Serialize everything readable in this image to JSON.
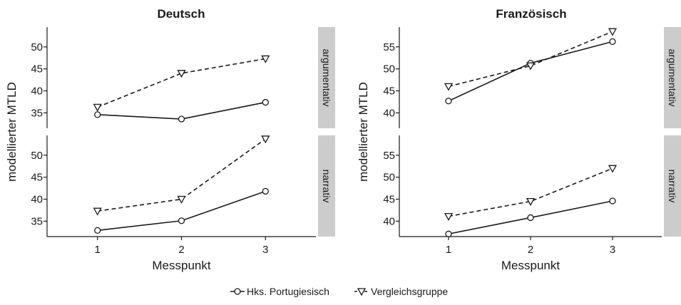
{
  "chart_data": {
    "type": "line",
    "x": [
      1,
      2,
      3
    ],
    "xlabel": "Messpunkt",
    "ylabel": "modellierter MTLD",
    "x_ticks": [
      "1",
      "2",
      "3"
    ],
    "column_titles": [
      "Deutsch",
      "Französisch"
    ],
    "row_labels": [
      "argumentativ",
      "narrativ"
    ],
    "legend": {
      "position": "bottom",
      "entries": [
        {
          "name": "Hks. Portugiesisch",
          "marker": "circle",
          "linestyle": "solid"
        },
        {
          "name": "Vergleichsgruppe",
          "marker": "triangle-down",
          "linestyle": "dashed"
        }
      ]
    },
    "panels": [
      {
        "language": "Deutsch",
        "genre": "argumentativ",
        "ylim": [
          31.5,
          54.5
        ],
        "yticks": [
          35,
          40,
          45,
          50
        ],
        "series": [
          {
            "name": "Hks. Portugiesisch",
            "values": [
              34.6,
              33.6,
              37.4
            ]
          },
          {
            "name": "Vergleichsgruppe",
            "values": [
              36.3,
              44.0,
              47.3
            ]
          }
        ]
      },
      {
        "language": "Deutsch",
        "genre": "narrativ",
        "ylim": [
          31.5,
          54.5
        ],
        "yticks": [
          35,
          40,
          45,
          50
        ],
        "series": [
          {
            "name": "Hks. Portugiesisch",
            "values": [
              32.9,
              35.1,
              41.8
            ]
          },
          {
            "name": "Vergleichsgruppe",
            "values": [
              37.3,
              40.0,
              53.7
            ]
          }
        ]
      },
      {
        "language": "Französisch",
        "genre": "argumentativ",
        "ylim": [
          36.5,
          59.5
        ],
        "yticks": [
          40,
          45,
          50,
          55
        ],
        "series": [
          {
            "name": "Hks. Portugiesisch",
            "values": [
              42.7,
              51.3,
              56.2
            ]
          },
          {
            "name": "Vergleichsgruppe",
            "values": [
              46.0,
              50.7,
              58.5
            ]
          }
        ]
      },
      {
        "language": "Französisch",
        "genre": "narrativ",
        "ylim": [
          36.5,
          59.5
        ],
        "yticks": [
          40,
          45,
          50,
          55
        ],
        "series": [
          {
            "name": "Hks. Portugiesisch",
            "values": [
              37.1,
              40.8,
              44.6
            ]
          },
          {
            "name": "Vergleichsgruppe",
            "values": [
              41.1,
              44.5,
              52.0
            ]
          }
        ]
      }
    ],
    "grid": false,
    "colors": {
      "line": "#1a1a1a",
      "strip_fill": "#cccccc",
      "marker_fill": "#ffffff"
    }
  }
}
